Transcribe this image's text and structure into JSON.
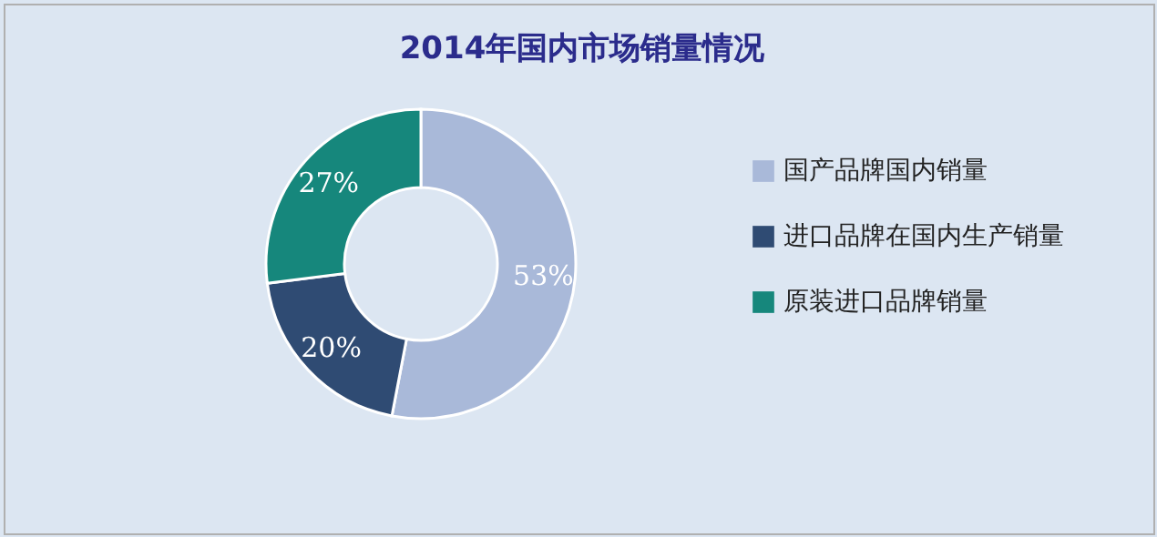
{
  "chart_data": {
    "type": "donut",
    "title": "2014年国内市场销量情况",
    "categories": [
      "国产品牌国内销量",
      "进口品牌在国内生产销量",
      "原装进口品牌销量"
    ],
    "values": [
      53,
      20,
      27
    ],
    "colors": [
      "#a9b9d9",
      "#2f4b73",
      "#16877c"
    ],
    "value_labels": [
      "53%",
      "20%",
      "27%"
    ],
    "legend": "right"
  }
}
